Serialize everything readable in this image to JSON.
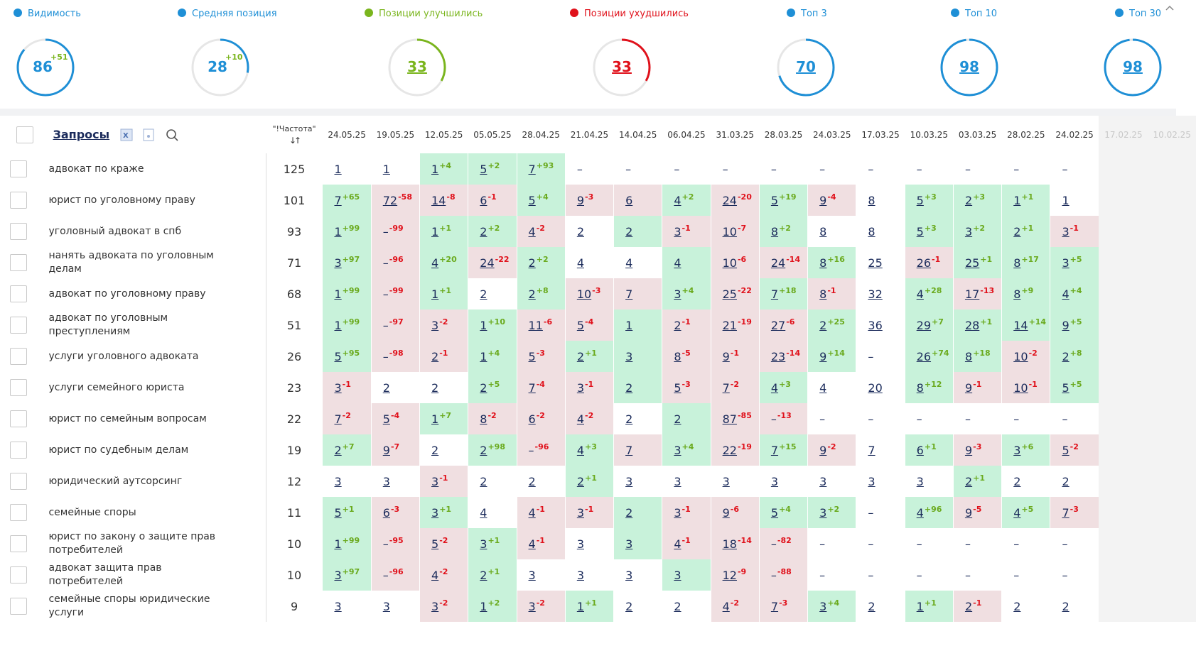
{
  "metrics": [
    {
      "label": "Видимость",
      "value": 86,
      "delta": "+51",
      "color": "#1e8fd6",
      "link": false
    },
    {
      "label": "Средняя позиция",
      "value": 28,
      "delta": "+10",
      "color": "#1e8fd6",
      "link": false
    },
    {
      "label": "Позиции улучшились",
      "value": 33,
      "color": "#7ab51d",
      "link": true
    },
    {
      "label": "Позиции ухудшились",
      "value": 33,
      "color": "#e0111b",
      "link": true
    },
    {
      "label": "Топ 3",
      "value": 70,
      "color": "#1e8fd6",
      "link": true
    },
    {
      "label": "Топ 10",
      "value": 98,
      "color": "#1e8fd6",
      "link": true
    },
    {
      "label": "Топ 30",
      "value": 98,
      "color": "#1e8fd6",
      "link": true
    }
  ],
  "cell_colors": {
    "g": "#c8f2da",
    "r": "#f0dfe1",
    "w": "#ffffff"
  },
  "table": {
    "query_header": "Запросы",
    "freq_header": "\"!Частота\"",
    "sort_icon": "↓↑",
    "dates": [
      "24.05.25",
      "19.05.25",
      "12.05.25",
      "05.05.25",
      "28.04.25",
      "21.04.25",
      "14.04.25",
      "06.04.25",
      "31.03.25",
      "28.03.25",
      "24.03.25",
      "17.03.25",
      "10.03.25",
      "03.03.25",
      "28.02.25",
      "24.02.25"
    ],
    "faded_dates": [
      "17.02.25",
      "10.02.25"
    ],
    "rows": [
      {
        "query": "адвокат по краже",
        "freq": 125,
        "cells": [
          [
            1,
            "w"
          ],
          [
            1,
            "w"
          ],
          [
            1,
            "g",
            "+4"
          ],
          [
            5,
            "g",
            "+2"
          ],
          [
            7,
            "g",
            "+93"
          ],
          [
            "–",
            "w"
          ],
          [
            "–",
            "w"
          ],
          [
            "–",
            "w"
          ],
          [
            "–",
            "w"
          ],
          [
            "–",
            "w"
          ],
          [
            "–",
            "w"
          ],
          [
            "–",
            "w"
          ],
          [
            "–",
            "w"
          ],
          [
            "–",
            "w"
          ],
          [
            "–",
            "w"
          ],
          [
            "–",
            "w"
          ]
        ]
      },
      {
        "query": "юрист по уголовному праву",
        "freq": 101,
        "cells": [
          [
            7,
            "g",
            "+65"
          ],
          [
            72,
            "r",
            "-58"
          ],
          [
            14,
            "r",
            "-8"
          ],
          [
            6,
            "r",
            "-1"
          ],
          [
            5,
            "g",
            "+4"
          ],
          [
            9,
            "r",
            "-3"
          ],
          [
            6,
            "r"
          ],
          [
            4,
            "g",
            "+2"
          ],
          [
            24,
            "r",
            "-20"
          ],
          [
            5,
            "g",
            "+19"
          ],
          [
            9,
            "r",
            "-4"
          ],
          [
            8,
            "w"
          ],
          [
            5,
            "g",
            "+3"
          ],
          [
            2,
            "g",
            "+3"
          ],
          [
            1,
            "g",
            "+1"
          ],
          [
            1,
            "w"
          ]
        ]
      },
      {
        "query": "уголовный адвокат в спб",
        "freq": 93,
        "cells": [
          [
            1,
            "g",
            "+99"
          ],
          [
            "–",
            "r",
            "-99"
          ],
          [
            1,
            "g",
            "+1"
          ],
          [
            2,
            "g",
            "+2"
          ],
          [
            4,
            "r",
            "-2"
          ],
          [
            2,
            "w"
          ],
          [
            2,
            "g"
          ],
          [
            3,
            "r",
            "-1"
          ],
          [
            10,
            "r",
            "-7"
          ],
          [
            8,
            "g",
            "+2"
          ],
          [
            8,
            "w"
          ],
          [
            8,
            "w"
          ],
          [
            5,
            "g",
            "+3"
          ],
          [
            3,
            "g",
            "+2"
          ],
          [
            2,
            "g",
            "+1"
          ],
          [
            3,
            "r",
            "-1"
          ]
        ]
      },
      {
        "query": "нанять адвоката по уголовным делам",
        "freq": 71,
        "cells": [
          [
            3,
            "g",
            "+97"
          ],
          [
            "–",
            "r",
            "-96"
          ],
          [
            4,
            "g",
            "+20"
          ],
          [
            24,
            "r",
            "-22"
          ],
          [
            2,
            "g",
            "+2"
          ],
          [
            4,
            "w"
          ],
          [
            4,
            "w"
          ],
          [
            4,
            "g"
          ],
          [
            10,
            "r",
            "-6"
          ],
          [
            24,
            "r",
            "-14"
          ],
          [
            8,
            "g",
            "+16"
          ],
          [
            25,
            "w"
          ],
          [
            26,
            "r",
            "-1"
          ],
          [
            25,
            "g",
            "+1"
          ],
          [
            8,
            "g",
            "+17"
          ],
          [
            3,
            "g",
            "+5"
          ]
        ]
      },
      {
        "query": "адвокат по уголовному праву",
        "freq": 68,
        "cells": [
          [
            1,
            "g",
            "+99"
          ],
          [
            "–",
            "r",
            "-99"
          ],
          [
            1,
            "g",
            "+1"
          ],
          [
            2,
            "w"
          ],
          [
            2,
            "g",
            "+8"
          ],
          [
            10,
            "r",
            "-3"
          ],
          [
            7,
            "r"
          ],
          [
            3,
            "g",
            "+4"
          ],
          [
            25,
            "r",
            "-22"
          ],
          [
            7,
            "g",
            "+18"
          ],
          [
            8,
            "r",
            "-1"
          ],
          [
            32,
            "w"
          ],
          [
            4,
            "g",
            "+28"
          ],
          [
            17,
            "r",
            "-13"
          ],
          [
            8,
            "g",
            "+9"
          ],
          [
            4,
            "g",
            "+4"
          ]
        ]
      },
      {
        "query": "адвокат по уголовным преступлениям",
        "freq": 51,
        "cells": [
          [
            1,
            "g",
            "+99"
          ],
          [
            "–",
            "r",
            "-97"
          ],
          [
            3,
            "r",
            "-2"
          ],
          [
            1,
            "g",
            "+10"
          ],
          [
            11,
            "r",
            "-6"
          ],
          [
            5,
            "r",
            "-4"
          ],
          [
            1,
            "g"
          ],
          [
            2,
            "r",
            "-1"
          ],
          [
            21,
            "r",
            "-19"
          ],
          [
            27,
            "r",
            "-6"
          ],
          [
            2,
            "g",
            "+25"
          ],
          [
            36,
            "w"
          ],
          [
            29,
            "g",
            "+7"
          ],
          [
            28,
            "g",
            "+1"
          ],
          [
            14,
            "g",
            "+14"
          ],
          [
            9,
            "g",
            "+5"
          ]
        ]
      },
      {
        "query": "услуги уголовного адвоката",
        "freq": 26,
        "cells": [
          [
            5,
            "g",
            "+95"
          ],
          [
            "–",
            "r",
            "-98"
          ],
          [
            2,
            "r",
            "-1"
          ],
          [
            1,
            "g",
            "+4"
          ],
          [
            5,
            "r",
            "-3"
          ],
          [
            2,
            "g",
            "+1"
          ],
          [
            3,
            "g"
          ],
          [
            8,
            "r",
            "-5"
          ],
          [
            9,
            "r",
            "-1"
          ],
          [
            23,
            "r",
            "-14"
          ],
          [
            9,
            "g",
            "+14"
          ],
          [
            "–",
            "w"
          ],
          [
            26,
            "g",
            "+74"
          ],
          [
            8,
            "g",
            "+18"
          ],
          [
            10,
            "r",
            "-2"
          ],
          [
            2,
            "g",
            "+8"
          ]
        ]
      },
      {
        "query": "услуги семейного юриста",
        "freq": 23,
        "cells": [
          [
            3,
            "r",
            "-1"
          ],
          [
            2,
            "w"
          ],
          [
            2,
            "w"
          ],
          [
            2,
            "g",
            "+5"
          ],
          [
            7,
            "r",
            "-4"
          ],
          [
            3,
            "r",
            "-1"
          ],
          [
            2,
            "g"
          ],
          [
            5,
            "r",
            "-3"
          ],
          [
            7,
            "r",
            "-2"
          ],
          [
            4,
            "g",
            "+3"
          ],
          [
            4,
            "w"
          ],
          [
            20,
            "w"
          ],
          [
            8,
            "g",
            "+12"
          ],
          [
            9,
            "r",
            "-1"
          ],
          [
            10,
            "r",
            "-1"
          ],
          [
            5,
            "g",
            "+5"
          ]
        ]
      },
      {
        "query": "юрист по семейным вопросам",
        "freq": 22,
        "cells": [
          [
            7,
            "r",
            "-2"
          ],
          [
            5,
            "r",
            "-4"
          ],
          [
            1,
            "g",
            "+7"
          ],
          [
            8,
            "r",
            "-2"
          ],
          [
            6,
            "r",
            "-2"
          ],
          [
            4,
            "r",
            "-2"
          ],
          [
            2,
            "w"
          ],
          [
            2,
            "g"
          ],
          [
            87,
            "r",
            "-85"
          ],
          [
            "–",
            "r",
            "-13"
          ],
          [
            "–",
            "w"
          ],
          [
            "–",
            "w"
          ],
          [
            "–",
            "w"
          ],
          [
            "–",
            "w"
          ],
          [
            "–",
            "w"
          ],
          [
            "–",
            "w"
          ]
        ]
      },
      {
        "query": "юрист по судебным делам",
        "freq": 19,
        "cells": [
          [
            2,
            "g",
            "+7"
          ],
          [
            9,
            "r",
            "-7"
          ],
          [
            2,
            "w"
          ],
          [
            2,
            "g",
            "+98"
          ],
          [
            "–",
            "r",
            "-96"
          ],
          [
            4,
            "g",
            "+3"
          ],
          [
            7,
            "r"
          ],
          [
            3,
            "g",
            "+4"
          ],
          [
            22,
            "r",
            "-19"
          ],
          [
            7,
            "g",
            "+15"
          ],
          [
            9,
            "r",
            "-2"
          ],
          [
            7,
            "w"
          ],
          [
            6,
            "g",
            "+1"
          ],
          [
            9,
            "r",
            "-3"
          ],
          [
            3,
            "g",
            "+6"
          ],
          [
            5,
            "r",
            "-2"
          ]
        ]
      },
      {
        "query": "юридический аутсорсинг",
        "freq": 12,
        "cells": [
          [
            3,
            "w"
          ],
          [
            3,
            "w"
          ],
          [
            3,
            "r",
            "-1"
          ],
          [
            2,
            "w"
          ],
          [
            2,
            "w"
          ],
          [
            2,
            "g",
            "+1"
          ],
          [
            3,
            "w"
          ],
          [
            3,
            "w"
          ],
          [
            3,
            "w"
          ],
          [
            3,
            "w"
          ],
          [
            3,
            "w"
          ],
          [
            3,
            "w"
          ],
          [
            3,
            "w"
          ],
          [
            2,
            "g",
            "+1"
          ],
          [
            2,
            "w"
          ],
          [
            2,
            "w"
          ]
        ]
      },
      {
        "query": "семейные споры",
        "freq": 11,
        "cells": [
          [
            5,
            "g",
            "+1"
          ],
          [
            6,
            "r",
            "-3"
          ],
          [
            3,
            "g",
            "+1"
          ],
          [
            4,
            "w"
          ],
          [
            4,
            "r",
            "-1"
          ],
          [
            3,
            "r",
            "-1"
          ],
          [
            2,
            "g"
          ],
          [
            3,
            "r",
            "-1"
          ],
          [
            9,
            "r",
            "-6"
          ],
          [
            5,
            "g",
            "+4"
          ],
          [
            3,
            "g",
            "+2"
          ],
          [
            "–",
            "w"
          ],
          [
            4,
            "g",
            "+96"
          ],
          [
            9,
            "r",
            "-5"
          ],
          [
            4,
            "g",
            "+5"
          ],
          [
            7,
            "r",
            "-3"
          ]
        ]
      },
      {
        "query": "юрист по закону о защите прав потребителей",
        "freq": 10,
        "cells": [
          [
            1,
            "g",
            "+99"
          ],
          [
            "–",
            "r",
            "-95"
          ],
          [
            5,
            "r",
            "-2"
          ],
          [
            3,
            "g",
            "+1"
          ],
          [
            4,
            "r",
            "-1"
          ],
          [
            3,
            "w"
          ],
          [
            3,
            "g"
          ],
          [
            4,
            "r",
            "-1"
          ],
          [
            18,
            "r",
            "-14"
          ],
          [
            "–",
            "r",
            "-82"
          ],
          [
            "–",
            "w"
          ],
          [
            "–",
            "w"
          ],
          [
            "–",
            "w"
          ],
          [
            "–",
            "w"
          ],
          [
            "–",
            "w"
          ],
          [
            "–",
            "w"
          ]
        ]
      },
      {
        "query": "адвокат защита прав потребителей",
        "freq": 10,
        "cells": [
          [
            3,
            "g",
            "+97"
          ],
          [
            "–",
            "r",
            "-96"
          ],
          [
            4,
            "r",
            "-2"
          ],
          [
            2,
            "g",
            "+1"
          ],
          [
            3,
            "w"
          ],
          [
            3,
            "w"
          ],
          [
            3,
            "w"
          ],
          [
            3,
            "g"
          ],
          [
            12,
            "r",
            "-9"
          ],
          [
            "–",
            "r",
            "-88"
          ],
          [
            "–",
            "w"
          ],
          [
            "–",
            "w"
          ],
          [
            "–",
            "w"
          ],
          [
            "–",
            "w"
          ],
          [
            "–",
            "w"
          ],
          [
            "–",
            "w"
          ]
        ]
      },
      {
        "query": "семейные споры юридические услуги",
        "freq": 9,
        "cells": [
          [
            3,
            "w"
          ],
          [
            3,
            "w"
          ],
          [
            3,
            "r",
            "-2"
          ],
          [
            1,
            "g",
            "+2"
          ],
          [
            3,
            "r",
            "-2"
          ],
          [
            1,
            "g",
            "+1"
          ],
          [
            2,
            "w"
          ],
          [
            2,
            "w"
          ],
          [
            4,
            "r",
            "-2"
          ],
          [
            7,
            "r",
            "-3"
          ],
          [
            3,
            "g",
            "+4"
          ],
          [
            2,
            "w"
          ],
          [
            1,
            "g",
            "+1"
          ],
          [
            2,
            "r",
            "-1"
          ],
          [
            2,
            "w"
          ],
          [
            2,
            "w"
          ]
        ]
      }
    ]
  }
}
